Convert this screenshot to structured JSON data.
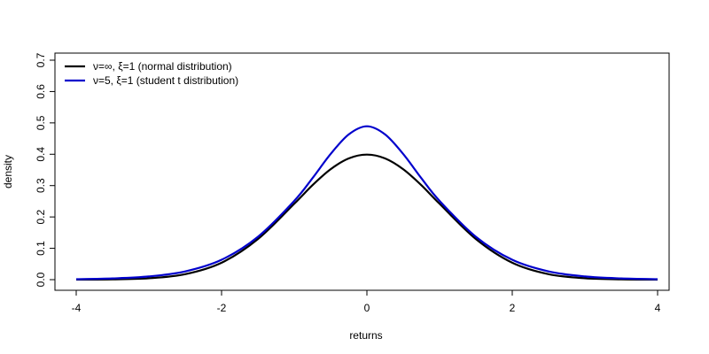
{
  "chart_data": {
    "type": "line",
    "title": "",
    "xlabel": "returns",
    "ylabel": "density",
    "xlim": [
      -4,
      4
    ],
    "ylim": [
      0,
      0.7
    ],
    "xticks": [
      -4,
      -2,
      0,
      2,
      4
    ],
    "xtick_labels": [
      "-4",
      "-2",
      "0",
      "2",
      "4"
    ],
    "yticks": [
      0.0,
      0.1,
      0.2,
      0.3,
      0.4,
      0.5,
      0.6,
      0.7
    ],
    "ytick_labels": [
      "0.0",
      "0.1",
      "0.2",
      "0.3",
      "0.4",
      "0.5",
      "0.6",
      "0.7"
    ],
    "grid": false,
    "legend_position": "top-left",
    "x": [
      -4,
      -3.5,
      -3,
      -2.5,
      -2,
      -1.5,
      -1,
      -0.75,
      -0.5,
      -0.25,
      0,
      0.25,
      0.5,
      0.75,
      1,
      1.5,
      2,
      2.5,
      3,
      3.5,
      4
    ],
    "series": [
      {
        "name": "ν=∞, ξ=1 (normal distribution)",
        "color": "#000000",
        "values": [
          0.0001,
          0.0009,
          0.0044,
          0.0175,
          0.054,
          0.1295,
          0.242,
          0.3011,
          0.3521,
          0.3867,
          0.3989,
          0.3867,
          0.3521,
          0.3011,
          0.242,
          0.1295,
          0.054,
          0.0175,
          0.0044,
          0.0009,
          0.0001
        ]
      },
      {
        "name": "ν=5, ξ=1 (student t distribution)",
        "color": "#0000cc",
        "values": [
          0.0015,
          0.0039,
          0.0102,
          0.0263,
          0.0634,
          0.1366,
          0.2512,
          0.3234,
          0.4006,
          0.4632,
          0.4892,
          0.4632,
          0.4006,
          0.3234,
          0.2512,
          0.1366,
          0.0634,
          0.0263,
          0.0102,
          0.0039,
          0.0015
        ]
      }
    ]
  }
}
